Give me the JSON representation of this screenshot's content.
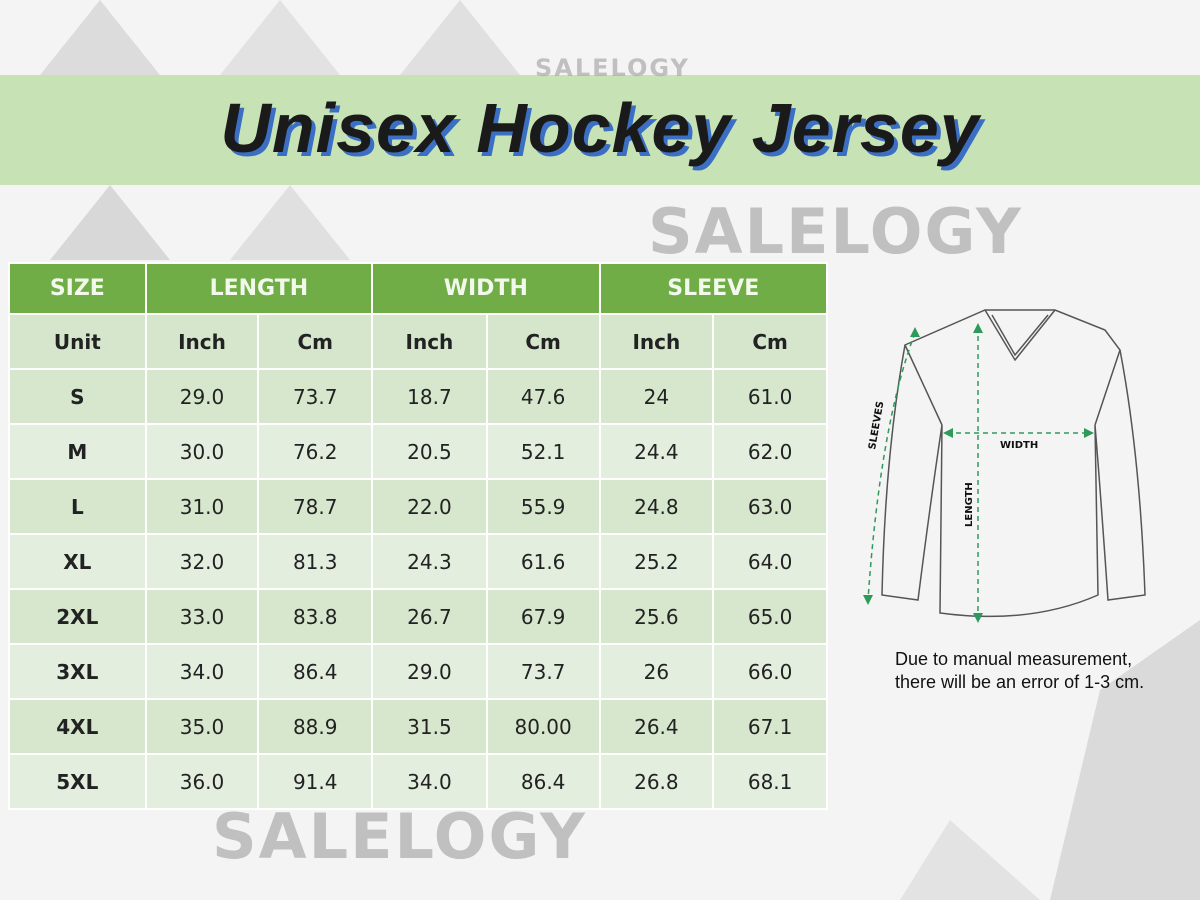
{
  "title": "Unisex Hockey Jersey",
  "watermark": "SALELOGY",
  "colors": {
    "header_green": "#70ad47",
    "band_green": "#c7e3b6",
    "title_shadow": "#3b6fc4"
  },
  "table": {
    "groups": [
      "SIZE",
      "LENGTH",
      "WIDTH",
      "SLEEVE"
    ],
    "units": [
      "Unit",
      "Inch",
      "Cm",
      "Inch",
      "Cm",
      "Inch",
      "Cm"
    ],
    "rows": [
      [
        "S",
        "29.0",
        "73.7",
        "18.7",
        "47.6",
        "24",
        "61.0"
      ],
      [
        "M",
        "30.0",
        "76.2",
        "20.5",
        "52.1",
        "24.4",
        "62.0"
      ],
      [
        "L",
        "31.0",
        "78.7",
        "22.0",
        "55.9",
        "24.8",
        "63.0"
      ],
      [
        "XL",
        "32.0",
        "81.3",
        "24.3",
        "61.6",
        "25.2",
        "64.0"
      ],
      [
        "2XL",
        "33.0",
        "83.8",
        "26.7",
        "67.9",
        "25.6",
        "65.0"
      ],
      [
        "3XL",
        "34.0",
        "86.4",
        "29.0",
        "73.7",
        "26",
        "66.0"
      ],
      [
        "4XL",
        "35.0",
        "88.9",
        "31.5",
        "80.00",
        "26.4",
        "67.1"
      ],
      [
        "5XL",
        "36.0",
        "91.4",
        "34.0",
        "86.4",
        "26.8",
        "68.1"
      ]
    ]
  },
  "diagram": {
    "sleeves": "SLEEVES",
    "width": "WIDTH",
    "length": "LENGTH"
  },
  "note": [
    "Due to manual measurement,",
    "there will be an error of 1-3 cm."
  ]
}
